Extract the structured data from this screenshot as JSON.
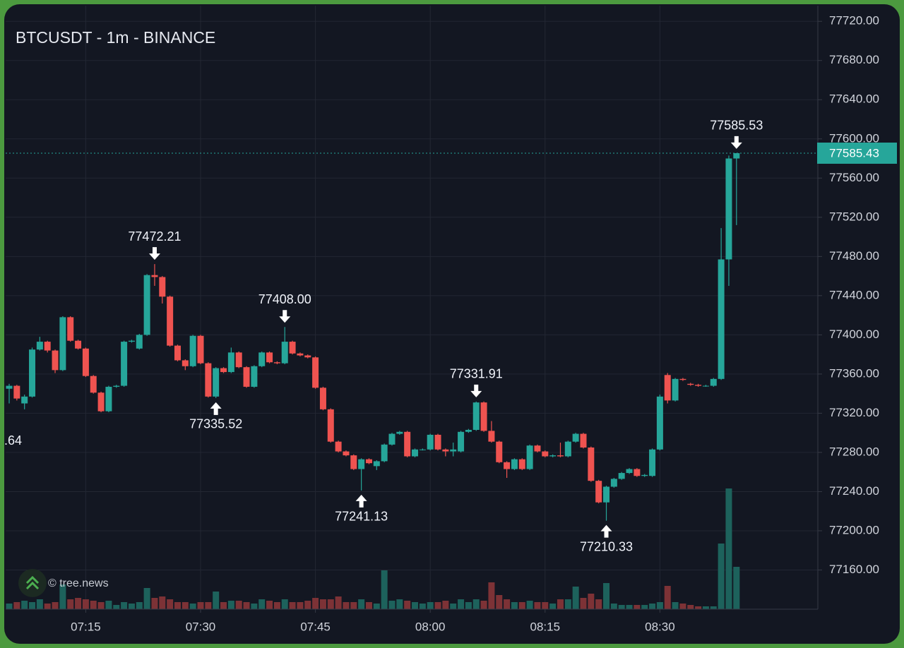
{
  "chart_data": {
    "type": "candlestick",
    "title": "BTCUSDT - 1m - BINANCE",
    "watermark": "© tree.news",
    "cropped_label": ".64",
    "categories": [
      null,
      null,
      null,
      null,
      null,
      null,
      null,
      null,
      null,
      null,
      "07:15",
      null,
      null,
      null,
      null,
      null,
      null,
      null,
      null,
      null,
      null,
      null,
      null,
      null,
      null,
      "07:30",
      null,
      null,
      null,
      null,
      null,
      null,
      null,
      null,
      null,
      null,
      null,
      null,
      null,
      null,
      "07:45",
      null,
      null,
      null,
      null,
      null,
      null,
      null,
      null,
      null,
      null,
      null,
      null,
      null,
      null,
      "08:00",
      null,
      null,
      null,
      null,
      null,
      null,
      null,
      null,
      null,
      null,
      null,
      null,
      null,
      null,
      "08:15",
      null,
      null,
      null,
      null,
      null,
      null,
      null,
      null,
      null,
      null,
      null,
      null,
      null,
      null,
      "08:30",
      null,
      null,
      null,
      null,
      null,
      null,
      null,
      null,
      null,
      null
    ],
    "open": [
      77345,
      77348,
      77330,
      77337,
      77385,
      77393,
      77384,
      77364,
      77418,
      77394,
      77386,
      77358,
      77341,
      77322,
      77347,
      77348,
      77393,
      77386,
      77400,
      77461,
      77459,
      77439,
      77389,
      77374,
      77368,
      77399,
      77371,
      77337,
      77366,
      77362,
      77382,
      77367,
      77347,
      77368,
      77382,
      77372,
      77371,
      77393,
      77381,
      77379,
      77377,
      77346,
      77324,
      77291,
      77281,
      77277,
      77263,
      77273,
      77266,
      77271,
      77288,
      77299,
      77301,
      77276,
      77283,
      77283,
      77298,
      77283,
      77281,
      77281,
      77301,
      77303,
      77331,
      77302,
      77291,
      77270,
      77263,
      77273,
      77263,
      77287,
      77281,
      77276,
      77277,
      77276,
      77291,
      77299,
      77285,
      77251,
      77229,
      77245,
      77253,
      77259,
      77263,
      77256,
      77256,
      77283,
      77359,
      77333,
      77355,
      77350,
      77349,
      77348,
      77348,
      77355,
      77477,
      77580
    ],
    "high": [
      77350,
      77349,
      77339,
      77387,
      77398,
      77394,
      77385,
      77419,
      77419,
      77395,
      77387,
      77359,
      77342,
      77348,
      77349,
      77394,
      77395,
      77401,
      77462,
      77472.21,
      77460,
      77440,
      77390,
      77375,
      77400,
      77400,
      77372,
      77367,
      77367,
      77387,
      77383,
      77368,
      77369,
      77383,
      77383,
      77373,
      77408.0,
      77394,
      77382,
      77380,
      77378,
      77347,
      77325,
      77292,
      77282,
      77278,
      77274,
      77274,
      77272,
      77289,
      77300,
      77302,
      77302,
      77284,
      77284,
      77299,
      77299,
      77284,
      77290,
      77302,
      77304,
      77331.91,
      77332,
      77312,
      77292,
      77271,
      77274,
      77274,
      77288,
      77288,
      77282,
      77278,
      77290,
      77292,
      77300,
      77300,
      77286,
      77252,
      77246,
      77254,
      77260,
      77264,
      77264,
      77258,
      77284,
      77339,
      77361,
      77356,
      77356,
      77351,
      77350,
      77349,
      77356,
      77509,
      77583,
      77585.53
    ],
    "low": [
      77330,
      77333,
      77324,
      77336,
      77384,
      77382,
      77361,
      77363,
      77393,
      77385,
      77357,
      77340,
      77321,
      77321,
      77346,
      77347,
      77392,
      77385,
      77399,
      77450,
      77432,
      77388,
      77373,
      77364,
      77367,
      77370,
      77336,
      77335.52,
      77361,
      77361,
      77366,
      77346,
      77346,
      77367,
      77371,
      77370,
      77370,
      77380,
      77378,
      77376,
      77345,
      77323,
      77290,
      77280,
      77276,
      77262,
      77241.13,
      77268,
      77262,
      77270,
      77287,
      77298,
      77275,
      77275,
      77282,
      77282,
      77282,
      77276,
      77276,
      77280,
      77300,
      77302,
      77301,
      77290,
      77269,
      77254,
      77262,
      77262,
      77262,
      77280,
      77275,
      77275,
      77275,
      77275,
      77290,
      77284,
      77250,
      77228,
      77210.33,
      77244,
      77252,
      77258,
      77255,
      77255,
      77255,
      77282,
      77330,
      77332,
      77353,
      77348,
      77347,
      77347,
      77347,
      77354,
      77450,
      77512
    ],
    "close": [
      77348,
      77335,
      77337,
      77385,
      77393,
      77384,
      77364,
      77418,
      77394,
      77386,
      77358,
      77341,
      77322,
      77347,
      77348,
      77393,
      77394,
      77400,
      77461,
      77459,
      77439,
      77389,
      77374,
      77368,
      77399,
      77371,
      77337,
      77366,
      77362,
      77382,
      77367,
      77347,
      77368,
      77382,
      77372,
      77371,
      77393,
      77381,
      77379,
      77377,
      77346,
      77324,
      77291,
      77281,
      77277,
      77263,
      77273,
      77269,
      77271,
      77288,
      77299,
      77301,
      77276,
      77283,
      77283,
      77298,
      77283,
      77281,
      77283,
      77301,
      77303,
      77331,
      77302,
      77291,
      77270,
      77263,
      77273,
      77263,
      77287,
      77281,
      77276,
      77277,
      77276,
      77291,
      77299,
      77285,
      77251,
      77229,
      77245,
      77253,
      77259,
      77263,
      77256,
      77257,
      77283,
      77337,
      77333,
      77355,
      77354,
      77349,
      77348,
      77348,
      77355,
      77477,
      77580,
      77585.43
    ],
    "volume": [
      8,
      10,
      12,
      10,
      14,
      8,
      10,
      35,
      14,
      16,
      14,
      12,
      10,
      12,
      6,
      10,
      8,
      10,
      30,
      16,
      18,
      14,
      10,
      10,
      8,
      10,
      10,
      25,
      10,
      12,
      12,
      10,
      8,
      14,
      12,
      10,
      14,
      10,
      10,
      12,
      16,
      14,
      14,
      18,
      10,
      10,
      14,
      10,
      8,
      55,
      12,
      14,
      12,
      10,
      8,
      10,
      10,
      12,
      8,
      14,
      10,
      14,
      12,
      38,
      20,
      14,
      10,
      10,
      12,
      10,
      10,
      8,
      14,
      14,
      32,
      16,
      22,
      14,
      37,
      8,
      6,
      6,
      6,
      6,
      8,
      10,
      33,
      10,
      8,
      6,
      4,
      4,
      4,
      93,
      171,
      60
    ],
    "up_color": "#26a69a",
    "down_color": "#ef5350",
    "volume_up_color": "#1d625c",
    "volume_down_color": "#7d3236",
    "ylim": [
      77120,
      77736
    ],
    "yticks": [
      {
        "value": 77160,
        "label": "77160.00"
      },
      {
        "value": 77200,
        "label": "77200.00"
      },
      {
        "value": 77240,
        "label": "77240.00"
      },
      {
        "value": 77280,
        "label": "77280.00"
      },
      {
        "value": 77320,
        "label": "77320.00"
      },
      {
        "value": 77360,
        "label": "77360.00"
      },
      {
        "value": 77400,
        "label": "77400.00"
      },
      {
        "value": 77440,
        "label": "77440.00"
      },
      {
        "value": 77480,
        "label": "77480.00"
      },
      {
        "value": 77520,
        "label": "77520.00"
      },
      {
        "value": 77560,
        "label": "77560.00"
      },
      {
        "value": 77600,
        "label": "77600.00"
      },
      {
        "value": 77640,
        "label": "77640.00"
      },
      {
        "value": 77680,
        "label": "77680.00"
      },
      {
        "value": 77720,
        "label": "77720.00"
      }
    ],
    "grid": true,
    "last_price": {
      "value": 77585.43,
      "label": "77585.43"
    },
    "annotations": [
      {
        "kind": "high",
        "value": 77472.21,
        "label": "77472.21"
      },
      {
        "kind": "low",
        "value": 77335.52,
        "label": "77335.52"
      },
      {
        "kind": "high",
        "value": 77408.0,
        "label": "77408.00"
      },
      {
        "kind": "low",
        "value": 77241.13,
        "label": "77241.13"
      },
      {
        "kind": "high",
        "value": 77331.91,
        "label": "77331.91"
      },
      {
        "kind": "low",
        "value": 77210.33,
        "label": "77210.33"
      },
      {
        "kind": "high",
        "value": 77585.53,
        "label": "77585.53"
      }
    ]
  }
}
